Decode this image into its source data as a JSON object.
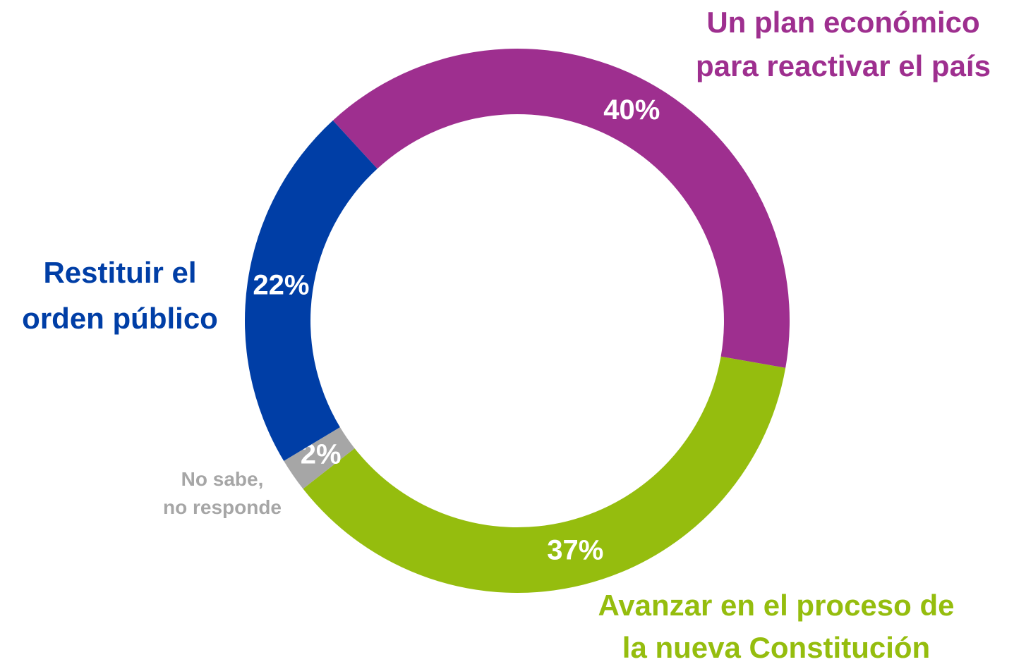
{
  "chart_data": {
    "type": "donut",
    "categories": [
      [
        "Un plan económico",
        "para reactivar el país"
      ],
      [
        "Avanzar en el proceso de",
        "la nueva Constitución"
      ],
      [
        "No sabe,",
        "no responde"
      ],
      [
        "Restituir el",
        "orden público"
      ]
    ],
    "values": [
      40,
      37,
      2,
      22
    ],
    "value_labels": [
      "40%",
      "37%",
      "2%",
      "22%"
    ],
    "colors": [
      "#9e2f8f",
      "#95bd0e",
      "#a6a6a6",
      "#003ea6"
    ]
  }
}
